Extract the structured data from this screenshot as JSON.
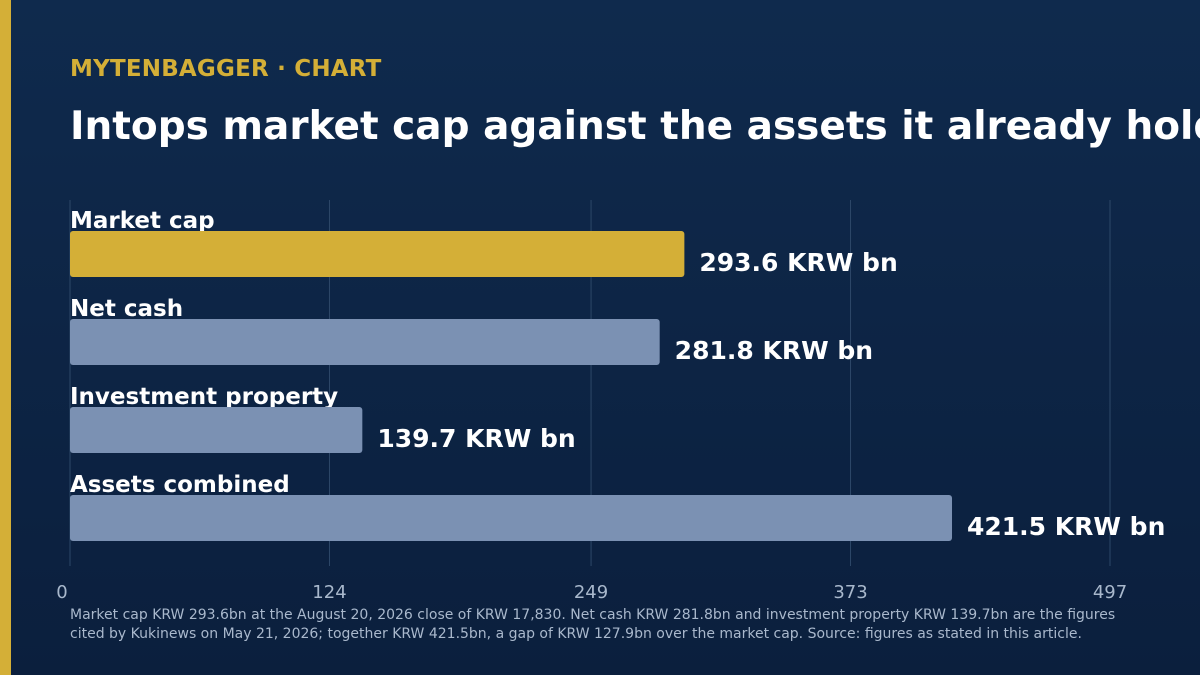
{
  "header": {
    "kicker": "MYTENBAGGER · CHART",
    "title": "Intops market cap against the assets it already holds"
  },
  "chart_data": {
    "type": "bar",
    "orientation": "horizontal",
    "categories": [
      "Market cap",
      "Net cash",
      "Investment property",
      "Assets combined"
    ],
    "values": [
      293.6,
      281.8,
      139.7,
      421.5
    ],
    "value_labels": [
      "293.6 KRW bn",
      "281.8 KRW bn",
      "139.7 KRW bn",
      "421.5 KRW bn"
    ],
    "highlight_index": 0,
    "xlim": [
      0,
      497
    ],
    "x_ticks": [
      0,
      124,
      249,
      373,
      497
    ],
    "grid": true,
    "colors": {
      "highlight": "#d4af37",
      "bar": "#7b91b3",
      "grid": "#2d4868",
      "label": "#ffffff",
      "tick": "#a9b8cc"
    }
  },
  "footnote": "Market cap KRW 293.6bn at the August 20, 2026 close of KRW 17,830. Net cash KRW 281.8bn and investment property KRW 139.7bn are the figures cited by Kukinews on May 21, 2026; together KRW 421.5bn, a gap of KRW 127.9bn over the market cap. Source: figures as stated in this article.",
  "brand": {
    "accent": "#d4af37"
  }
}
